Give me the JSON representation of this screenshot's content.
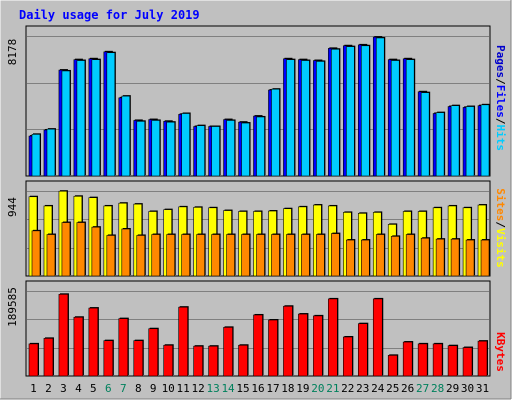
{
  "chart_data": {
    "type": "bar",
    "title": "Daily usage for July 2019",
    "categories": [
      "1",
      "2",
      "3",
      "4",
      "5",
      "6",
      "7",
      "8",
      "9",
      "10",
      "11",
      "12",
      "13",
      "14",
      "15",
      "16",
      "17",
      "18",
      "19",
      "20",
      "21",
      "22",
      "23",
      "24",
      "25",
      "26",
      "27",
      "28",
      "29",
      "30",
      "31"
    ],
    "weekend_days": [
      "6",
      "7",
      "13",
      "14",
      "20",
      "21",
      "27",
      "28"
    ],
    "panels": [
      {
        "id": "top",
        "max_label": "8178",
        "ymax": 8178,
        "series": [
          {
            "name": "Pages",
            "color": "#0000cc",
            "values": [
              null,
              null,
              null,
              null,
              null,
              null,
              null,
              null,
              null,
              null,
              null,
              null,
              null,
              null,
              null,
              null,
              null,
              null,
              null,
              null,
              null,
              null,
              null,
              null,
              null,
              null,
              null,
              null,
              null,
              null,
              null
            ]
          },
          {
            "name": "Files",
            "color": "#0000ff",
            "values": [
              2300,
              2650,
              6100,
              6700,
              6750,
              7150,
              4500,
              3200,
              3250,
              3150,
              3550,
              2850,
              2850,
              3250,
              3100,
              3450,
              4950,
              6750,
              6700,
              6650,
              7350,
              7500,
              7550,
              8000,
              6700,
              6750,
              4850,
              3600,
              4000,
              3950,
              4050
            ]
          },
          {
            "name": "Hits",
            "color": "#00ccff",
            "values": [
              2400,
              2700,
              6050,
              6650,
              6700,
              7100,
              4600,
              3150,
              3200,
              3100,
              3600,
              2900,
              2850,
              3200,
              3050,
              3400,
              5000,
              6700,
              6650,
              6600,
              7300,
              7450,
              7500,
              7950,
              6650,
              6700,
              4800,
              3650,
              4050,
              4000,
              4100
            ]
          }
        ]
      },
      {
        "id": "middle",
        "max_label": "944",
        "ymax": 944,
        "series": [
          {
            "name": "Visits",
            "color": "#ffff00",
            "values": [
              860,
              760,
              920,
              865,
              850,
              760,
              790,
              780,
              700,
              720,
              750,
              745,
              740,
              710,
              700,
              700,
              705,
              730,
              750,
              770,
              760,
              690,
              680,
              690,
              560,
              700,
              700,
              740,
              760,
              740,
              770
            ]
          },
          {
            "name": "Sites",
            "color": "#ff8800",
            "values": [
              490,
              450,
              580,
              580,
              530,
              440,
              510,
              440,
              450,
              450,
              450,
              450,
              450,
              450,
              450,
              450,
              450,
              450,
              450,
              450,
              460,
              390,
              390,
              450,
              430,
              450,
              410,
              400,
              400,
              390,
              390
            ]
          }
        ]
      },
      {
        "id": "bottom",
        "max_label": "189585",
        "ymax": 189585,
        "series": [
          {
            "name": "KBytes",
            "color": "#ff0000",
            "values": [
              70000,
              82000,
              178000,
              128000,
              148000,
              77000,
              125000,
              77000,
              103000,
              67000,
              150000,
              65000,
              65000,
              106000,
              67000,
              133000,
              122000,
              152000,
              135000,
              131000,
              168000,
              85000,
              114000,
              168000,
              45000,
              74000,
              70000,
              70000,
              66000,
              62000,
              76000
            ]
          }
        ]
      }
    ],
    "legend_top": [
      "Pages",
      "/",
      "Files",
      "/",
      "Hits"
    ],
    "legend_middle": [
      "Sites",
      "/",
      "Visits"
    ],
    "legend_bottom": [
      "KBytes"
    ],
    "grid": true,
    "colors": {
      "background": "#c0c0c0",
      "frame_light": "#ffffff",
      "frame_dark": "#808080",
      "title": "#0000ff",
      "grid": "#808080",
      "weekday_label": "#000000",
      "weekend_label": "#00805c",
      "legend_sep": "#000000"
    }
  }
}
